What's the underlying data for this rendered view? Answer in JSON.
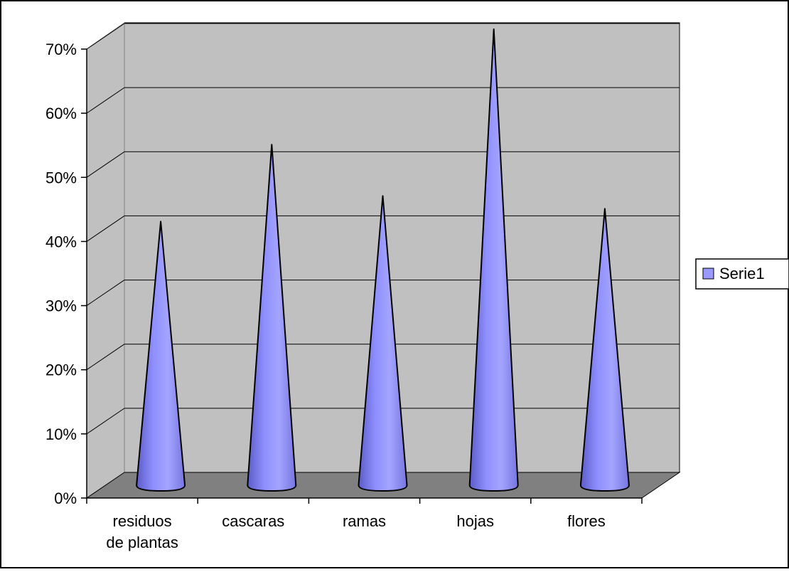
{
  "chart_data": {
    "type": "bar",
    "style": "3d-cone",
    "categories": [
      "residuos de plantas",
      "cascaras",
      "ramas",
      "hojas",
      "flores"
    ],
    "category_lines": [
      [
        "residuos",
        "de plantas"
      ],
      [
        "cascaras"
      ],
      [
        "ramas"
      ],
      [
        "hojas"
      ],
      [
        "flores"
      ]
    ],
    "series": [
      {
        "name": "Serie1",
        "values": [
          0.4,
          0.52,
          0.44,
          0.7,
          0.42
        ],
        "color": "#9999ff"
      }
    ],
    "ylim": [
      0,
      0.7
    ],
    "yticks": [
      "0%",
      "10%",
      "20%",
      "30%",
      "40%",
      "50%",
      "60%",
      "70%"
    ],
    "grid": true,
    "legend": "right",
    "colors": {
      "wall": "#c0c0c0",
      "floor": "#808080",
      "cone": "#9999ff"
    }
  }
}
